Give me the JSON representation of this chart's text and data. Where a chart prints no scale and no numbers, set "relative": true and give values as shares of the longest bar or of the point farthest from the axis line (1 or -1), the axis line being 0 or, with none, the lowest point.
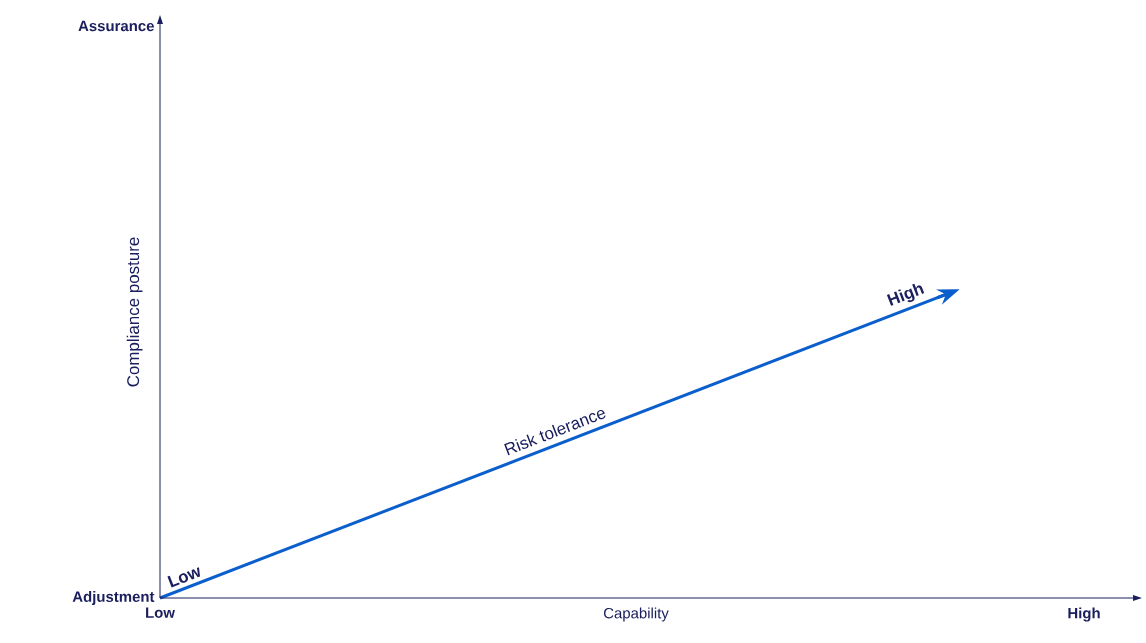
{
  "chart_data": {
    "type": "line",
    "xlabel": "Capability",
    "ylabel": "Compliance posture",
    "relative": true,
    "categories": [
      null,
      null
    ],
    "series": [
      {
        "name": "Risk tolerance",
        "color": "#0b5fcc",
        "values": [
          0,
          1
        ]
      }
    ],
    "annotations": [
      "Low",
      "High",
      "Adjustment",
      "Assurance",
      "Low",
      "High"
    ],
    "legend": false,
    "line_style": "solid"
  }
}
